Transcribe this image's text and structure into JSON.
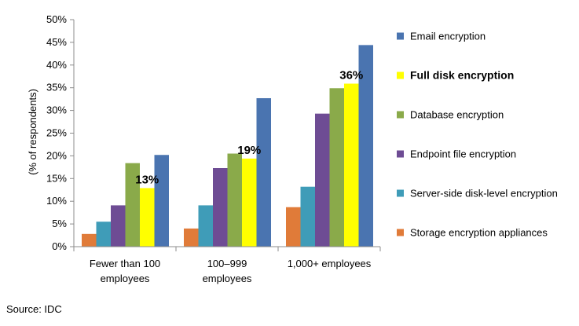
{
  "chart_data": {
    "type": "bar",
    "ylabel": "(% of respondents)",
    "ylim": [
      0,
      50
    ],
    "yticks": [
      "0%",
      "5%",
      "10%",
      "15%",
      "20%",
      "25%",
      "30%",
      "35%",
      "40%",
      "45%",
      "50%"
    ],
    "categories": [
      [
        "Fewer than 100",
        "employees"
      ],
      [
        "100–999",
        "employees"
      ],
      [
        "1,000+ employees"
      ]
    ],
    "series": [
      {
        "name": "Storage encryption appliances",
        "color": "#E07B39",
        "values": [
          2.8,
          4.0,
          8.7
        ]
      },
      {
        "name": "Server-side disk-level encryption",
        "color": "#3F9CB8",
        "values": [
          5.5,
          9.1,
          13.2
        ]
      },
      {
        "name": "Endpoint file encryption",
        "color": "#6E4C94",
        "values": [
          9.1,
          17.3,
          29.3
        ]
      },
      {
        "name": "Database encryption",
        "color": "#8AAA4A",
        "values": [
          18.4,
          20.5,
          34.9
        ]
      },
      {
        "name": "Full disk encryption",
        "color": "#FFFF00",
        "values": [
          12.9,
          19.4,
          35.9
        ],
        "bold": true
      },
      {
        "name": "Email encryption",
        "color": "#4A74B0",
        "values": [
          20.2,
          32.7,
          44.4
        ]
      }
    ],
    "data_labels": [
      {
        "series": "Full disk encryption",
        "category_index": 0,
        "text": "13%"
      },
      {
        "series": "Full disk encryption",
        "category_index": 1,
        "text": "19%"
      },
      {
        "series": "Full disk encryption",
        "category_index": 2,
        "text": "36%"
      }
    ],
    "legend_position": "right",
    "grid": false
  },
  "source": "Source: IDC"
}
